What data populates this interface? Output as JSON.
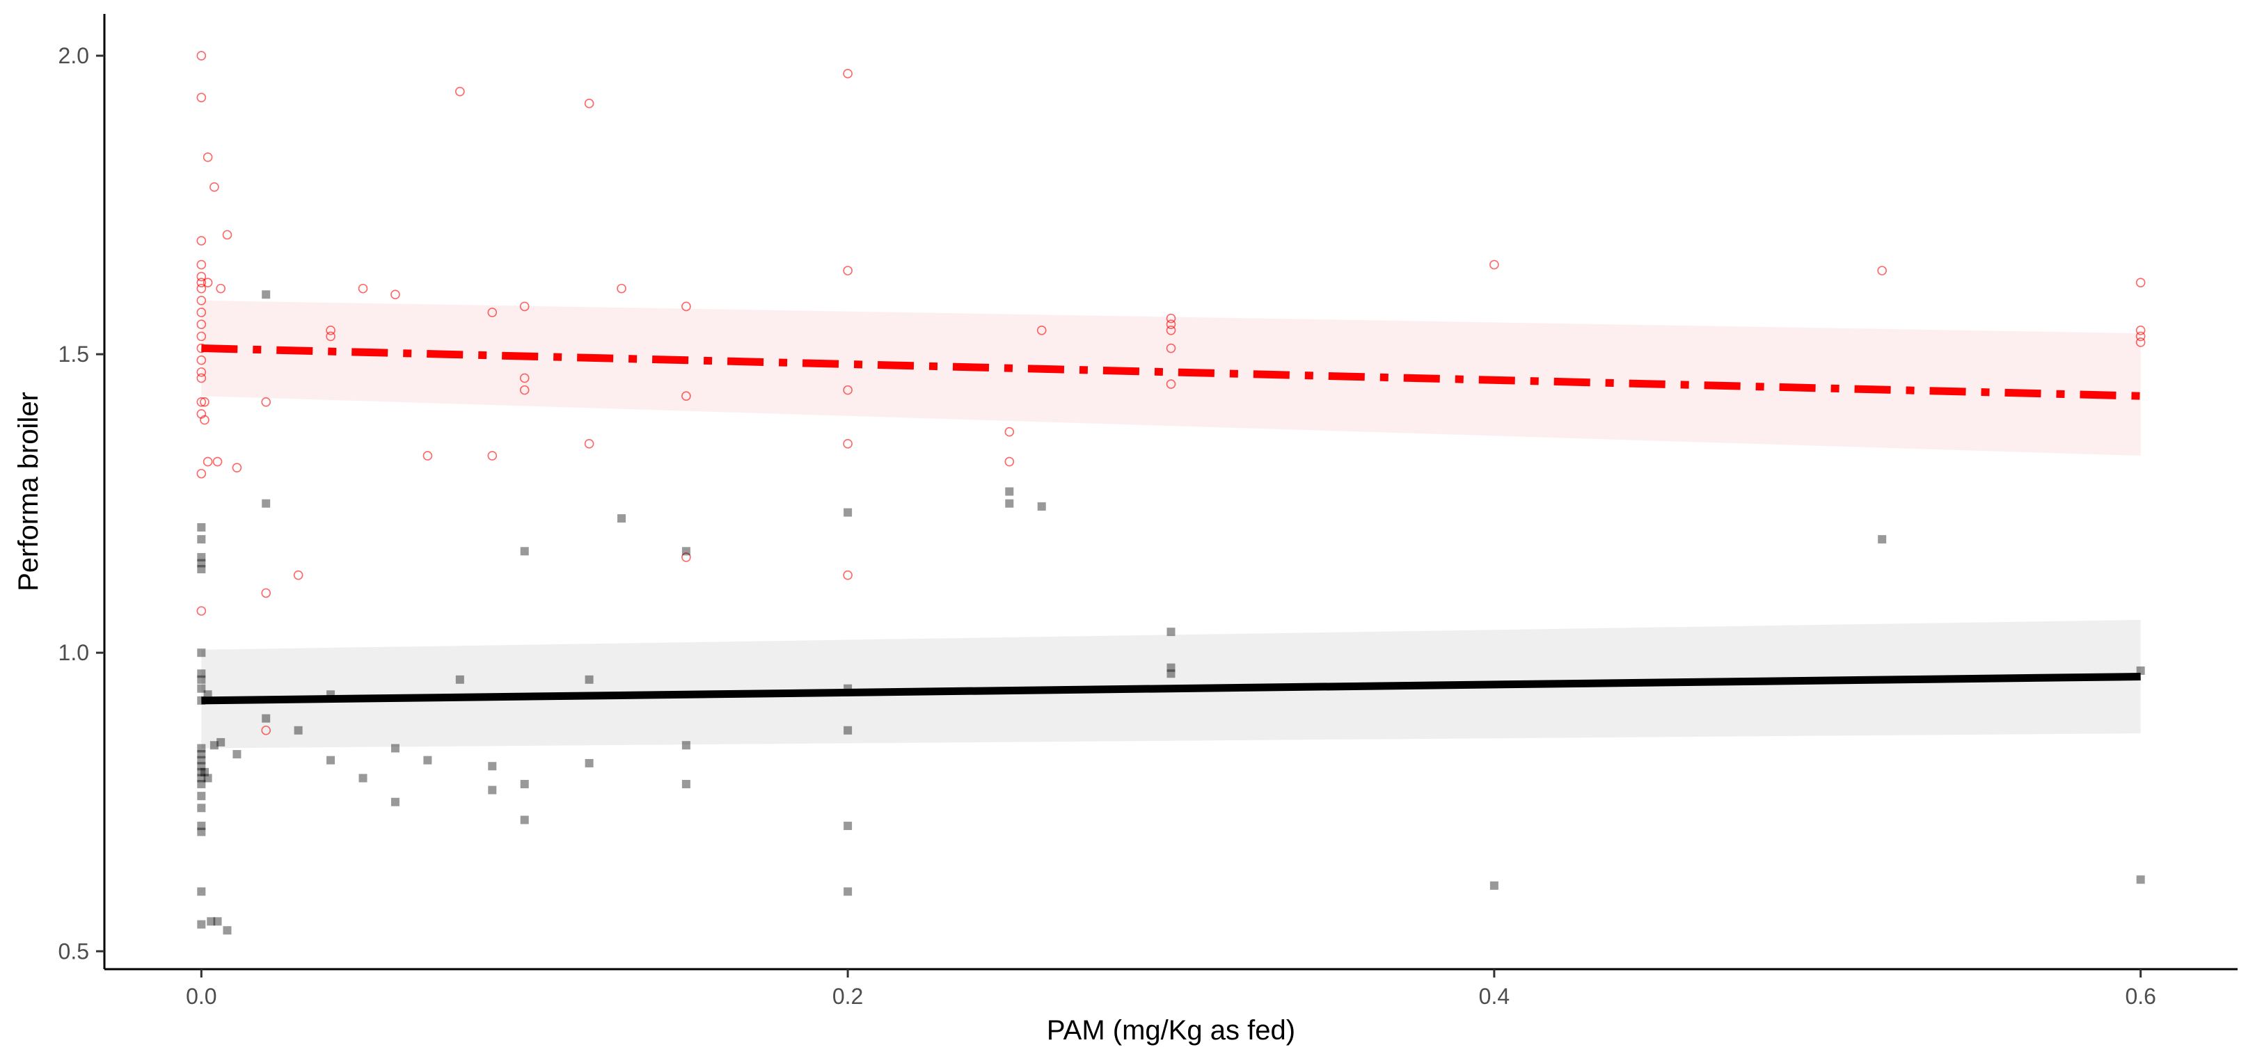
{
  "chart_data": {
    "type": "scatter",
    "title": "",
    "xlabel": "PAM (mg/Kg as fed)",
    "ylabel": "Performa broiler",
    "xlim": [
      -0.03,
      0.63
    ],
    "ylim": [
      0.47,
      2.07
    ],
    "x_ticks": [
      0.0,
      0.2,
      0.4,
      0.6
    ],
    "x_tick_labels": [
      "0.0",
      "0.2",
      "0.4",
      "0.6"
    ],
    "y_ticks": [
      0.5,
      1.0,
      1.5,
      2.0
    ],
    "y_tick_labels": [
      "0.5",
      "1.0",
      "1.5",
      "2.0"
    ],
    "grid": false,
    "legend": "none",
    "series": [
      {
        "color": "#ff0000",
        "marker": "open-circle",
        "line_style": "dash-dot",
        "points": [
          [
            0.0,
            2.0
          ],
          [
            0.0,
            1.93
          ],
          [
            0.002,
            1.83
          ],
          [
            0.004,
            1.78
          ],
          [
            0.008,
            1.7
          ],
          [
            0.0,
            1.69
          ],
          [
            0.0,
            1.65
          ],
          [
            0.0,
            1.63
          ],
          [
            0.0,
            1.62
          ],
          [
            0.002,
            1.62
          ],
          [
            0.0,
            1.61
          ],
          [
            0.006,
            1.61
          ],
          [
            0.0,
            1.59
          ],
          [
            0.0,
            1.57
          ],
          [
            0.0,
            1.55
          ],
          [
            0.0,
            1.53
          ],
          [
            0.0,
            1.51
          ],
          [
            0.0,
            1.49
          ],
          [
            0.0,
            1.47
          ],
          [
            0.0,
            1.46
          ],
          [
            0.0,
            1.42
          ],
          [
            0.001,
            1.42
          ],
          [
            0.0,
            1.4
          ],
          [
            0.001,
            1.39
          ],
          [
            0.0,
            1.3
          ],
          [
            0.002,
            1.32
          ],
          [
            0.005,
            1.32
          ],
          [
            0.011,
            1.31
          ],
          [
            0.0,
            1.07
          ],
          [
            0.02,
            1.42
          ],
          [
            0.02,
            1.1
          ],
          [
            0.02,
            0.87
          ],
          [
            0.03,
            1.13
          ],
          [
            0.04,
            1.54
          ],
          [
            0.04,
            1.53
          ],
          [
            0.05,
            1.61
          ],
          [
            0.06,
            1.6
          ],
          [
            0.07,
            1.33
          ],
          [
            0.08,
            1.94
          ],
          [
            0.09,
            1.57
          ],
          [
            0.09,
            1.33
          ],
          [
            0.1,
            1.58
          ],
          [
            0.1,
            1.46
          ],
          [
            0.1,
            1.44
          ],
          [
            0.12,
            1.92
          ],
          [
            0.12,
            1.35
          ],
          [
            0.13,
            1.61
          ],
          [
            0.15,
            1.58
          ],
          [
            0.15,
            1.43
          ],
          [
            0.15,
            1.16
          ],
          [
            0.2,
            1.97
          ],
          [
            0.2,
            1.64
          ],
          [
            0.2,
            1.44
          ],
          [
            0.2,
            1.35
          ],
          [
            0.2,
            1.13
          ],
          [
            0.25,
            1.37
          ],
          [
            0.25,
            1.32
          ],
          [
            0.26,
            1.54
          ],
          [
            0.3,
            1.56
          ],
          [
            0.3,
            1.55
          ],
          [
            0.3,
            1.54
          ],
          [
            0.3,
            1.51
          ],
          [
            0.3,
            1.45
          ],
          [
            0.4,
            1.65
          ],
          [
            0.52,
            1.64
          ],
          [
            0.6,
            1.62
          ],
          [
            0.6,
            1.54
          ],
          [
            0.6,
            1.53
          ],
          [
            0.6,
            1.52
          ]
        ],
        "fit": {
          "x": [
            0.0,
            0.6
          ],
          "y": [
            1.51,
            1.43
          ]
        },
        "ci_lower": [
          1.43,
          1.33
        ],
        "ci_upper": [
          1.59,
          1.535
        ]
      },
      {
        "color": "#000000",
        "marker": "filled-square",
        "line_style": "solid",
        "points": [
          [
            0.0,
            1.21
          ],
          [
            0.0,
            1.19
          ],
          [
            0.0,
            1.16
          ],
          [
            0.0,
            1.15
          ],
          [
            0.0,
            1.14
          ],
          [
            0.0,
            1.0
          ],
          [
            0.0,
            0.965
          ],
          [
            0.0,
            0.955
          ],
          [
            0.0,
            0.94
          ],
          [
            0.002,
            0.93
          ],
          [
            0.0,
            0.92
          ],
          [
            0.0,
            0.84
          ],
          [
            0.0,
            0.83
          ],
          [
            0.0,
            0.82
          ],
          [
            0.0,
            0.81
          ],
          [
            0.0,
            0.8
          ],
          [
            0.0,
            0.79
          ],
          [
            0.0,
            0.78
          ],
          [
            0.0,
            0.76
          ],
          [
            0.0,
            0.74
          ],
          [
            0.0,
            0.71
          ],
          [
            0.0,
            0.7
          ],
          [
            0.0,
            0.6
          ],
          [
            0.0,
            0.545
          ],
          [
            0.003,
            0.55
          ],
          [
            0.005,
            0.55
          ],
          [
            0.008,
            0.535
          ],
          [
            0.001,
            0.8
          ],
          [
            0.002,
            0.79
          ],
          [
            0.004,
            0.845
          ],
          [
            0.006,
            0.85
          ],
          [
            0.011,
            0.83
          ],
          [
            0.02,
            1.6
          ],
          [
            0.02,
            1.25
          ],
          [
            0.02,
            0.89
          ],
          [
            0.03,
            0.87
          ],
          [
            0.04,
            0.93
          ],
          [
            0.04,
            0.82
          ],
          [
            0.05,
            0.79
          ],
          [
            0.06,
            0.84
          ],
          [
            0.06,
            0.75
          ],
          [
            0.07,
            0.82
          ],
          [
            0.08,
            0.955
          ],
          [
            0.09,
            0.81
          ],
          [
            0.09,
            0.77
          ],
          [
            0.1,
            1.17
          ],
          [
            0.1,
            0.78
          ],
          [
            0.1,
            0.72
          ],
          [
            0.12,
            0.955
          ],
          [
            0.12,
            0.815
          ],
          [
            0.13,
            1.225
          ],
          [
            0.15,
            1.17
          ],
          [
            0.15,
            0.845
          ],
          [
            0.15,
            0.78
          ],
          [
            0.2,
            1.235
          ],
          [
            0.2,
            0.94
          ],
          [
            0.2,
            0.87
          ],
          [
            0.2,
            0.71
          ],
          [
            0.2,
            0.6
          ],
          [
            0.25,
            1.27
          ],
          [
            0.25,
            1.25
          ],
          [
            0.26,
            1.245
          ],
          [
            0.3,
            1.035
          ],
          [
            0.3,
            0.975
          ],
          [
            0.3,
            0.965
          ],
          [
            0.4,
            0.61
          ],
          [
            0.52,
            1.19
          ],
          [
            0.6,
            0.97
          ],
          [
            0.6,
            0.62
          ]
        ],
        "fit": {
          "x": [
            0.0,
            0.6
          ],
          "y": [
            0.92,
            0.96
          ]
        },
        "ci_lower": [
          0.84,
          0.865
        ],
        "ci_upper": [
          1.005,
          1.055
        ]
      }
    ]
  }
}
